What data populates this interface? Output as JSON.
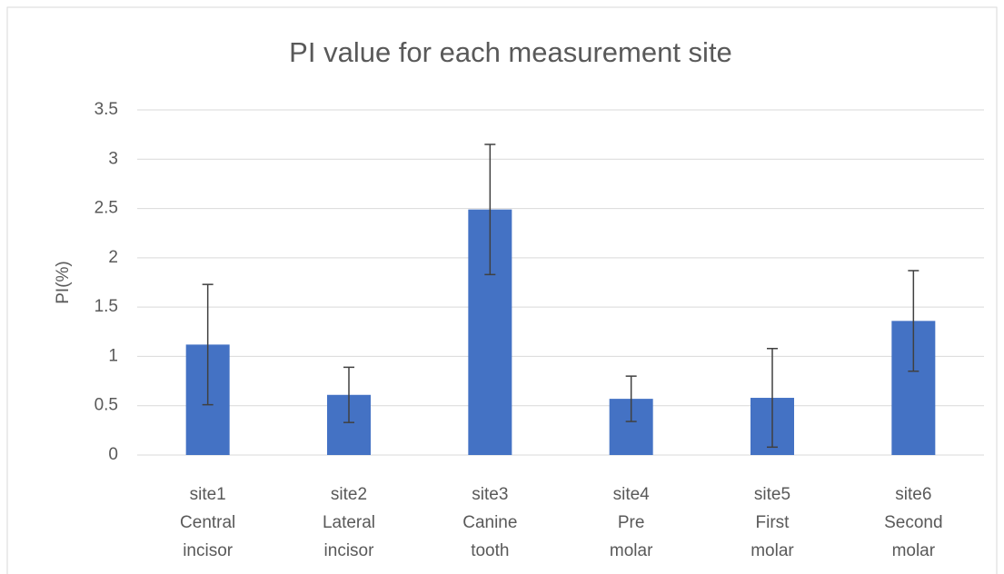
{
  "chart_data": {
    "type": "bar",
    "title": "PI value for each measurement site",
    "y_label": "PI(%)",
    "categories": [
      [
        "site1",
        "Central",
        "incisor"
      ],
      [
        "site2",
        "Lateral",
        "incisor"
      ],
      [
        "site3",
        "Canine",
        "tooth"
      ],
      [
        "site4",
        "Pre",
        "molar"
      ],
      [
        "site5",
        "First",
        "molar"
      ],
      [
        "site6",
        "Second",
        "molar"
      ]
    ],
    "values": [
      1.12,
      0.61,
      2.49,
      0.57,
      0.58,
      1.36
    ],
    "errors": [
      0.61,
      0.28,
      0.66,
      0.23,
      0.5,
      0.51
    ],
    "color": "#4472c4",
    "error_color": "#404040",
    "ylim": [
      0,
      3.5
    ],
    "yticks": [
      0,
      0.5,
      1,
      1.5,
      2,
      2.5,
      3,
      3.5
    ],
    "grid": true
  }
}
